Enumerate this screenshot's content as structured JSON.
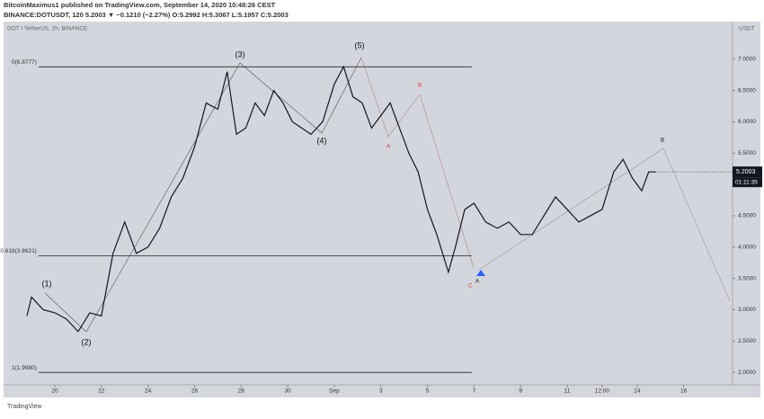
{
  "header": {
    "publisher": "BitcoinMaximus1 published on TradingView.com, September 14, 2020 10:48:26 CEST",
    "symbol": "BINANCE:DOTUSDT, 120 5.2003 ▼ −0.1210 (−2.27%) O:5.2992 H:5.3067 L:5.1957 C:5.2003"
  },
  "footer": {
    "logo": "TradingView"
  },
  "chart_data": {
    "type": "line",
    "title": "DOT / TetherUS, 2h, BINANCE",
    "y_axis_label": "USDT",
    "color": "#131722",
    "x": [
      18.8,
      19.0,
      19.5,
      20.0,
      20.5,
      21.0,
      21.5,
      22.0,
      22.5,
      23.0,
      23.5,
      24.0,
      24.5,
      25.0,
      25.5,
      26.0,
      26.5,
      27.0,
      27.4,
      27.8,
      28.2,
      28.6,
      29.0,
      29.4,
      29.8,
      30.2,
      30.6,
      31.0,
      31.5,
      32.0,
      32.4,
      32.8,
      33.2,
      33.6,
      34.0,
      34.4,
      34.8,
      35.2,
      35.6,
      36.0,
      36.4,
      36.9,
      37.2,
      37.6,
      38.0,
      38.5,
      39.0,
      39.5,
      40.0,
      40.5,
      41.0,
      41.5,
      42.0,
      42.5,
      43.0,
      43.5,
      44.0,
      44.4,
      44.8,
      45.2,
      45.5,
      45.8
    ],
    "values": [
      2.9,
      3.2,
      3.0,
      2.95,
      2.85,
      2.65,
      2.95,
      2.9,
      3.9,
      4.4,
      3.9,
      4.0,
      4.3,
      4.8,
      5.1,
      5.6,
      6.3,
      6.2,
      6.8,
      5.8,
      5.9,
      6.3,
      6.1,
      6.5,
      6.3,
      6.0,
      5.9,
      5.8,
      6.0,
      6.6,
      6.88,
      6.4,
      6.3,
      5.9,
      6.1,
      6.3,
      5.9,
      5.5,
      5.2,
      4.6,
      4.2,
      3.6,
      4.0,
      4.6,
      4.7,
      4.4,
      4.3,
      4.4,
      4.2,
      4.2,
      4.5,
      4.8,
      4.6,
      4.4,
      4.5,
      4.6,
      5.2,
      5.4,
      5.1,
      4.9,
      5.2,
      5.2
    ],
    "xlim": [
      17.8,
      49.1
    ],
    "ylim": [
      1.8,
      7.6
    ],
    "xticks": [
      {
        "value": 20,
        "label": "20"
      },
      {
        "value": 22,
        "label": "22"
      },
      {
        "value": 24,
        "label": "24"
      },
      {
        "value": 26,
        "label": "26"
      },
      {
        "value": 28,
        "label": "28"
      },
      {
        "value": 30,
        "label": "30"
      },
      {
        "value": 32,
        "label": "Sep"
      },
      {
        "value": 34,
        "label": "3"
      },
      {
        "value": 36,
        "label": "5"
      },
      {
        "value": 38,
        "label": "7"
      },
      {
        "value": 40,
        "label": "9"
      },
      {
        "value": 42,
        "label": "11"
      },
      {
        "value": 43.5,
        "label": "12:00"
      },
      {
        "value": 45,
        "label": "14"
      },
      {
        "value": 47,
        "label": "16"
      }
    ],
    "yticks": [
      {
        "value": 2,
        "label": "2.0000"
      },
      {
        "value": 2.5,
        "label": "2.5000"
      },
      {
        "value": 3,
        "label": "3.0000"
      },
      {
        "value": 3.5,
        "label": "3.5000"
      },
      {
        "value": 4,
        "label": "4.0000"
      },
      {
        "value": 4.5,
        "label": "4.5000"
      },
      {
        "value": 5.5,
        "label": "5.5000"
      },
      {
        "value": 6,
        "label": "6.0000"
      },
      {
        "value": 6.5,
        "label": "6.5000"
      },
      {
        "value": 7,
        "label": "7.0000"
      }
    ],
    "levels": [
      {
        "value": 6.8777,
        "label": "0(6.8777)"
      },
      {
        "value": 3.8621,
        "label": "0.618(3.8621)"
      },
      {
        "value": 1.998,
        "label": "1(1.9980)"
      }
    ],
    "last_price": {
      "value": 5.2003,
      "label": "5.2003"
    },
    "countdown": "01:11:35",
    "annotations": [
      "(1)",
      "(2)",
      "(3)",
      "(4)",
      "(5)",
      "A",
      "B",
      "C",
      "A",
      "B"
    ]
  }
}
